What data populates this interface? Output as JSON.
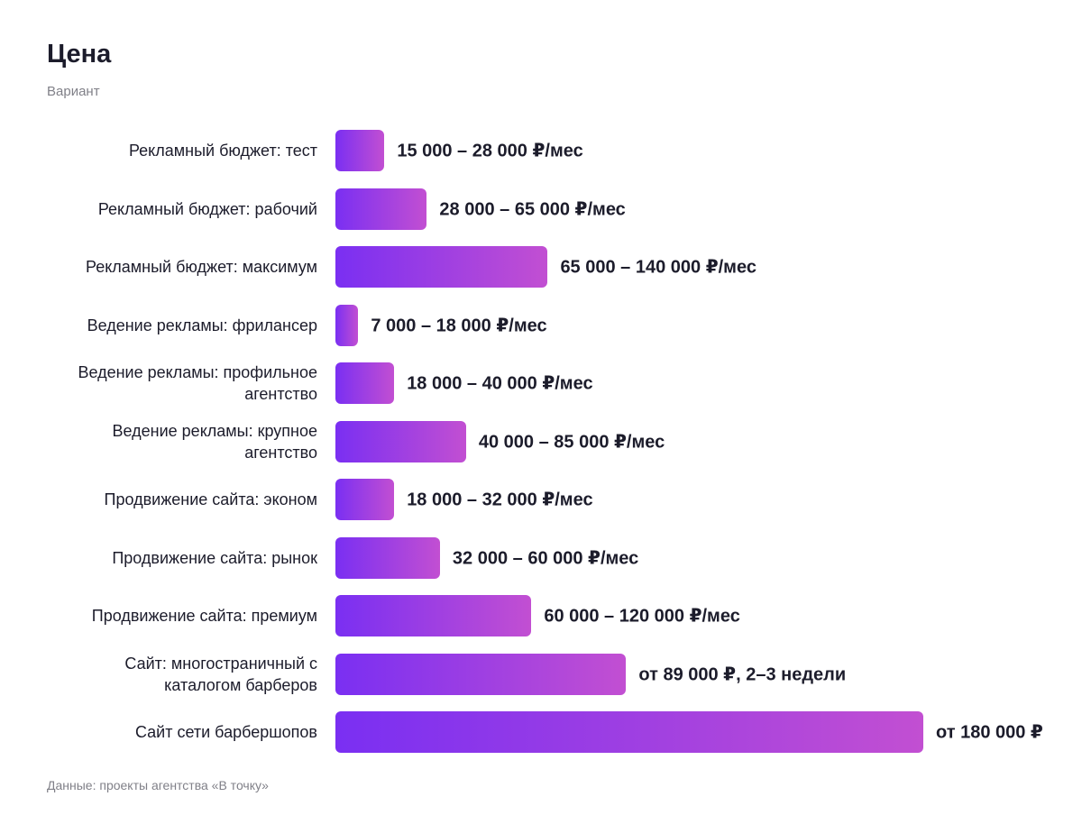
{
  "chart_data": {
    "type": "bar",
    "orientation": "horizontal",
    "title": "Цена",
    "subtitle": "Вариант",
    "categories": [
      "Рекламный бюджет: тест",
      "Рекламный бюджет: рабочий",
      "Рекламный бюджет: максимум",
      "Ведение рекламы: фрилансер",
      "Ведение рекламы: профильное агентство",
      "Ведение рекламы: крупное агентство",
      "Продвижение сайта: эконом",
      "Продвижение сайта: рынок",
      "Продвижение сайта: премиум",
      "Сайт: многостраничный с каталогом барберов",
      "Сайт сети барбершопов"
    ],
    "values": [
      15000,
      28000,
      65000,
      7000,
      18000,
      40000,
      18000,
      32000,
      60000,
      89000,
      180000
    ],
    "value_labels": [
      "15 000 – 28 000 ₽/мес",
      "28 000 – 65 000 ₽/мес",
      "65 000 – 140 000 ₽/мес",
      "7 000 – 18 000 ₽/мес",
      "18 000 – 40 000 ₽/мес",
      "40 000 – 85 000 ₽/мес",
      "18 000 – 32 000 ₽/мес",
      "32 000 – 60 000 ₽/мес",
      "60 000 – 120 000 ₽/мес",
      "от 89 000 ₽, 2–3 недели",
      "от 180 000 ₽"
    ],
    "colors": [
      "#7a2ff2",
      "#c24fd2"
    ],
    "source": "Данные: проекты агентства «В точку»"
  }
}
